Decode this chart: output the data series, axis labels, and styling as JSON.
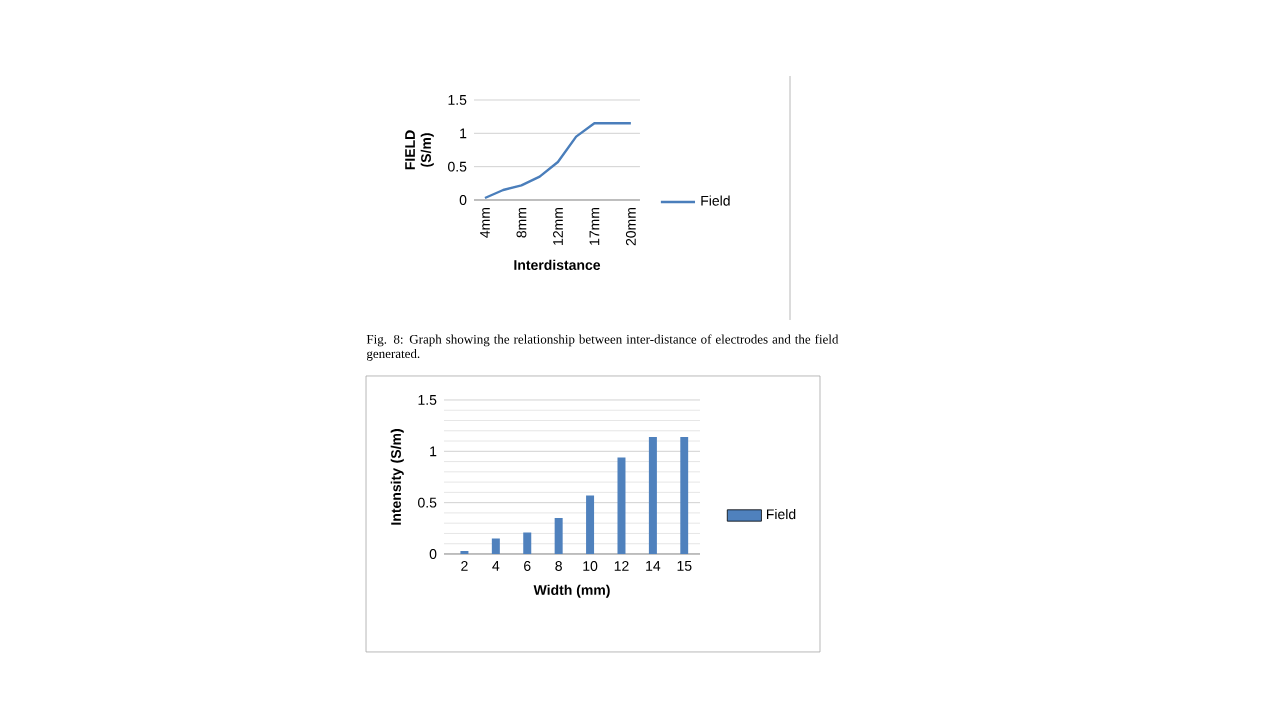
{
  "chart_data": [
    {
      "type": "line",
      "xlabel": "Interdistance",
      "ylabel": "FIELD (S/m)",
      "categories": [
        "4mm",
        null,
        "8mm",
        null,
        "12mm",
        null,
        "17mm",
        null,
        "20mm"
      ],
      "series": [
        {
          "name": "Field",
          "color": "#4a7ebb",
          "values": [
            0.03,
            0.15,
            0.22,
            0.35,
            0.57,
            0.95,
            1.15,
            1.15,
            1.15
          ]
        }
      ],
      "ylim": [
        0,
        1.5
      ],
      "yticks": [
        0,
        0.5,
        1,
        1.5
      ],
      "grid": "y",
      "legend": "right",
      "annotations": [
        "Fig. 8: Graph showing the relationship between inter-distance of electrodes and the field generated."
      ]
    },
    {
      "type": "bar",
      "xlabel": "Width (mm)",
      "ylabel": "Intensity (S/m)",
      "categories": [
        "2",
        "4",
        "6",
        "8",
        "10",
        "12",
        "14",
        "15"
      ],
      "series": [
        {
          "name": "Field",
          "color": "#4f81bd",
          "values": [
            0.03,
            0.15,
            0.21,
            0.35,
            0.57,
            0.94,
            1.14,
            1.14
          ]
        }
      ],
      "ylim": [
        0,
        1.5
      ],
      "yticks": [
        0,
        0.5,
        1,
        1.5
      ],
      "grid": "y",
      "legend": "right"
    }
  ]
}
